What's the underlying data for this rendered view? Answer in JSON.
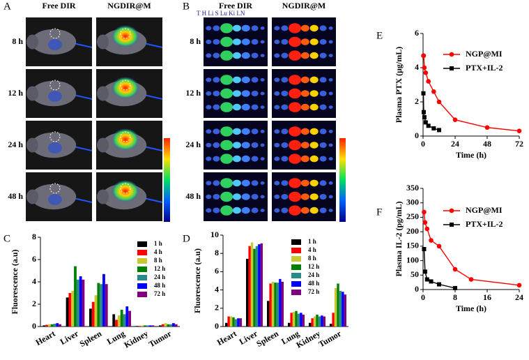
{
  "image_panels": [
    {
      "label": "A",
      "columns": [
        "Free DIR",
        "NGDIR@M"
      ],
      "rows": [
        "8 h",
        "12 h",
        "24 h",
        "48 h"
      ]
    },
    {
      "label": "B",
      "columns": [
        "Free DIR",
        "NGDIR@M"
      ],
      "organs": "T H Li S Lu Ki LN",
      "rows": [
        "8 h",
        "12 h",
        "24 h",
        "48 h"
      ]
    }
  ],
  "chart_data": [
    {
      "type": "bar",
      "label": "C",
      "y_label": "Fluorescence (a.u)",
      "categories": [
        "Heart",
        "Liver",
        "Spleen",
        "Lung",
        "Kidney",
        "Tumor"
      ],
      "ylim": [
        0,
        8
      ],
      "yticks": [
        0,
        2,
        4,
        6,
        8
      ],
      "series": [
        {
          "name": "1 h",
          "color": "#000000",
          "values": [
            0.1,
            2.6,
            1.6,
            1.1,
            0.05,
            0.1
          ]
        },
        {
          "name": "4 h",
          "color": "#ff0000",
          "values": [
            0.15,
            3.0,
            2.2,
            0.6,
            0.05,
            0.2
          ]
        },
        {
          "name": "8 h",
          "color": "#c8c832",
          "values": [
            0.2,
            3.2,
            2.8,
            1.0,
            0.1,
            0.3
          ]
        },
        {
          "name": "12 h",
          "color": "#008000",
          "values": [
            0.2,
            5.4,
            3.9,
            1.5,
            0.1,
            0.2
          ]
        },
        {
          "name": "24 h",
          "color": "#2a8a8a",
          "values": [
            0.25,
            4.2,
            3.8,
            1.1,
            0.1,
            0.2
          ]
        },
        {
          "name": "48 h",
          "color": "#0000ff",
          "values": [
            0.3,
            4.5,
            4.7,
            1.8,
            0.1,
            0.3
          ]
        },
        {
          "name": "72 h",
          "color": "#800080",
          "values": [
            0.2,
            4.2,
            3.8,
            1.4,
            0.1,
            0.2
          ]
        }
      ]
    },
    {
      "type": "bar",
      "label": "D",
      "y_label": "Fluorescence (a.u)",
      "categories": [
        "Heart",
        "Liver",
        "Spleen",
        "Lung",
        "Kidney",
        "Tumor"
      ],
      "ylim": [
        0,
        10
      ],
      "yticks": [
        0,
        2,
        4,
        6,
        8,
        10
      ],
      "series": [
        {
          "name": "1 h",
          "color": "#000000",
          "values": [
            0.4,
            7.4,
            2.8,
            0.4,
            0.4,
            0.3
          ]
        },
        {
          "name": "4 h",
          "color": "#ff0000",
          "values": [
            1.1,
            8.8,
            4.7,
            1.5,
            0.9,
            1.5
          ]
        },
        {
          "name": "8 h",
          "color": "#c8c832",
          "values": [
            1.1,
            9.2,
            4.9,
            1.6,
            1.1,
            4.2
          ]
        },
        {
          "name": "12 h",
          "color": "#008000",
          "values": [
            1.0,
            8.5,
            4.8,
            1.7,
            1.3,
            4.7
          ]
        },
        {
          "name": "24 h",
          "color": "#2a8a8a",
          "values": [
            0.8,
            8.8,
            4.8,
            1.4,
            1.1,
            3.9
          ]
        },
        {
          "name": "48 h",
          "color": "#0000ff",
          "values": [
            0.9,
            9.0,
            5.2,
            1.5,
            1.2,
            3.8
          ]
        },
        {
          "name": "72 h",
          "color": "#800080",
          "values": [
            0.9,
            9.1,
            4.9,
            1.3,
            1.1,
            3.5
          ]
        }
      ]
    },
    {
      "type": "line",
      "label": "E",
      "y_label": "Plasma PTX (μg/mL)",
      "x_label": "Time (h)",
      "xlim": [
        0,
        72
      ],
      "xticks": [
        0,
        24,
        48,
        72
      ],
      "ylim": [
        0,
        6
      ],
      "yticks": [
        0,
        2,
        4,
        6
      ],
      "series": [
        {
          "name": "NGP@MI",
          "color": "#ff0000",
          "marker": "circle",
          "x": [
            0.25,
            0.5,
            1,
            2,
            4,
            8,
            12,
            24,
            48,
            72
          ],
          "values": [
            4.7,
            4.7,
            4.0,
            3.7,
            3.2,
            2.6,
            2.0,
            0.95,
            0.5,
            0.3
          ]
        },
        {
          "name": "PTX+IL-2",
          "color": "#000000",
          "marker": "square",
          "x": [
            0.25,
            0.5,
            1,
            2,
            4,
            8,
            12
          ],
          "values": [
            2.5,
            1.4,
            1.1,
            0.8,
            0.6,
            0.45,
            0.35
          ]
        }
      ]
    },
    {
      "type": "line",
      "label": "F",
      "y_label": "Plasma IL-2 (pg/mL)",
      "x_label": "Time (h)",
      "xlim": [
        0,
        24
      ],
      "xticks": [
        0,
        8,
        16,
        24
      ],
      "ylim": [
        0,
        350
      ],
      "yticks": [
        0,
        50,
        100,
        150,
        200,
        250,
        300,
        350
      ],
      "series": [
        {
          "name": "NGP@MI",
          "color": "#ff0000",
          "marker": "circle",
          "x": [
            0.25,
            0.5,
            1,
            2,
            4,
            8,
            12,
            24
          ],
          "values": [
            268,
            232,
            210,
            170,
            150,
            70,
            35,
            15
          ]
        },
        {
          "name": "PTX+IL-2",
          "color": "#000000",
          "marker": "square",
          "x": [
            0.25,
            0.5,
            1,
            2,
            4,
            8
          ],
          "values": [
            140,
            62,
            35,
            28,
            18,
            5
          ]
        }
      ]
    }
  ]
}
